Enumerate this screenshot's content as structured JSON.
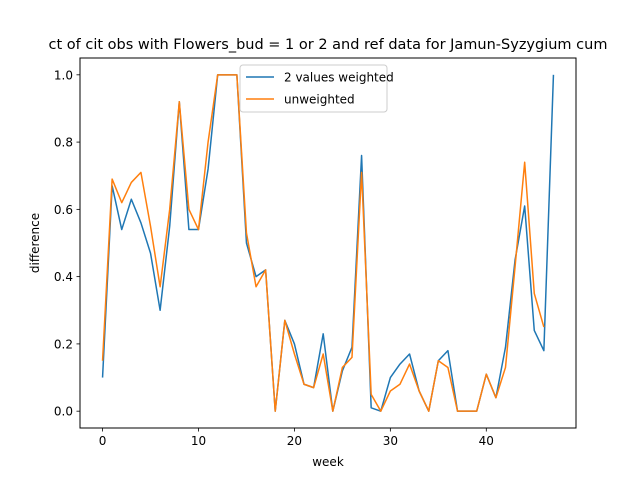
{
  "chart_data": {
    "type": "line",
    "title": "ct of cit obs with Flowers_bud = 1 or 2 and ref data for Jamun-Syzygium cum",
    "xlabel": "week",
    "ylabel": "difference",
    "xlim": [
      -2.35,
      49.35
    ],
    "ylim": [
      -0.05,
      1.05
    ],
    "xticks": [
      0,
      10,
      20,
      30,
      40
    ],
    "yticks": [
      0.0,
      0.2,
      0.4,
      0.6,
      0.8,
      1.0
    ],
    "ytick_labels": [
      "0.0",
      "0.2",
      "0.4",
      "0.6",
      "0.8",
      "1.0"
    ],
    "grid": false,
    "legend_position": "upper center",
    "series": [
      {
        "name": "2 values weighted",
        "color": "#1f77b4",
        "x": [
          0,
          1,
          2,
          3,
          4,
          5,
          6,
          7,
          8,
          9,
          10,
          11,
          12,
          13,
          14,
          15,
          16,
          17,
          18,
          19,
          20,
          21,
          22,
          23,
          24,
          25,
          26,
          27,
          28,
          29,
          30,
          31,
          32,
          33,
          34,
          35,
          36,
          37,
          38,
          39,
          40,
          41,
          42,
          43,
          44,
          45,
          46,
          47
        ],
        "y": [
          0.1,
          0.67,
          0.54,
          0.63,
          0.56,
          0.47,
          0.3,
          0.55,
          0.92,
          0.54,
          0.54,
          0.72,
          1.0,
          1.0,
          1.0,
          0.5,
          0.4,
          0.42,
          0.0,
          0.27,
          0.2,
          0.08,
          0.07,
          0.23,
          0.0,
          0.12,
          0.19,
          0.76,
          0.01,
          0.0,
          0.1,
          0.14,
          0.17,
          0.06,
          0.0,
          0.15,
          0.18,
          0.0,
          0.0,
          0.0,
          0.11,
          0.04,
          0.19,
          0.45,
          0.61,
          0.24,
          0.18,
          1.0
        ]
      },
      {
        "name": "unweighted",
        "color": "#ff7f0e",
        "x": [
          0,
          1,
          2,
          3,
          4,
          5,
          6,
          7,
          8,
          9,
          10,
          11,
          12,
          13,
          14,
          15,
          16,
          17,
          18,
          19,
          20,
          21,
          22,
          23,
          24,
          25,
          26,
          27,
          28,
          29,
          30,
          31,
          32,
          33,
          34,
          35,
          36,
          37,
          38,
          39,
          40,
          41,
          42,
          43,
          44,
          45,
          46
        ],
        "y": [
          0.15,
          0.69,
          0.62,
          0.68,
          0.71,
          0.55,
          0.37,
          0.6,
          0.92,
          0.6,
          0.54,
          0.8,
          1.0,
          1.0,
          1.0,
          0.53,
          0.37,
          0.42,
          0.0,
          0.27,
          0.17,
          0.08,
          0.07,
          0.17,
          0.0,
          0.13,
          0.16,
          0.71,
          0.05,
          0.0,
          0.06,
          0.08,
          0.14,
          0.06,
          0.0,
          0.15,
          0.13,
          0.0,
          0.0,
          0.0,
          0.11,
          0.04,
          0.13,
          0.43,
          0.74,
          0.35,
          0.25
        ]
      }
    ]
  }
}
